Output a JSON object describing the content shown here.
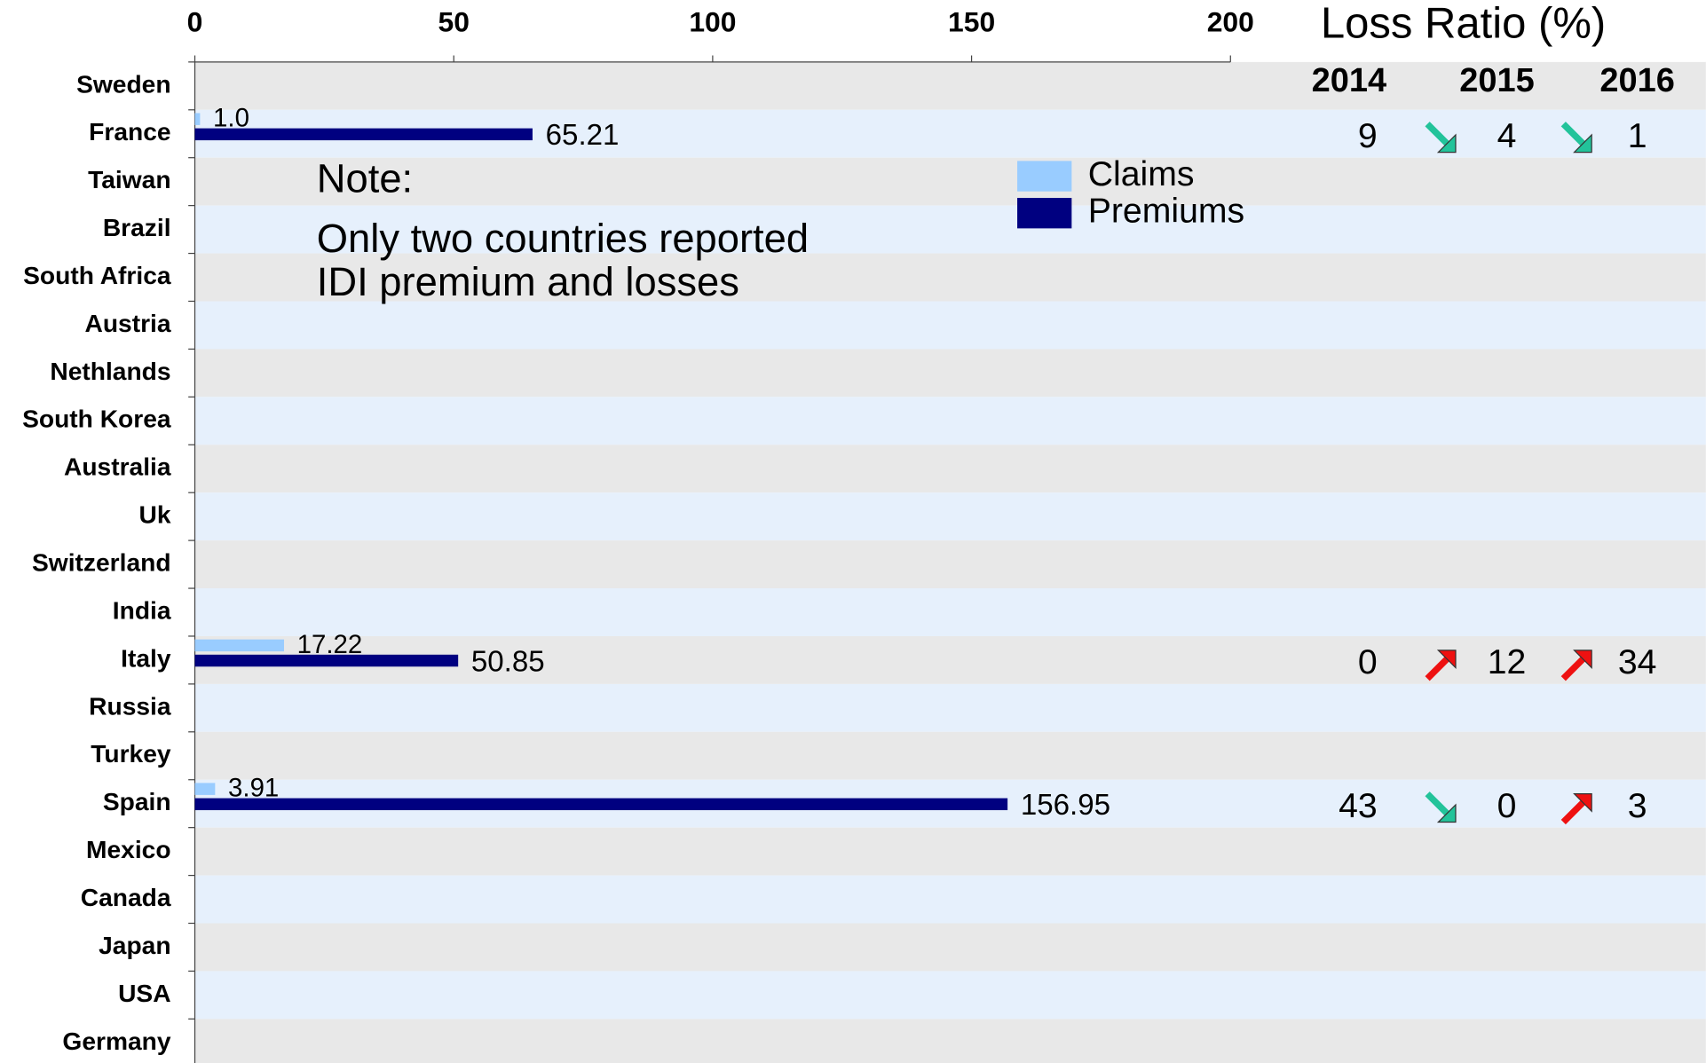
{
  "chart_data": {
    "type": "hbar",
    "categories": [
      "Sweden",
      "France",
      "Taiwan",
      "Brazil",
      "South Africa",
      "Austria",
      "Nethlands",
      "South Korea",
      "Australia",
      "Uk",
      "Switzerland",
      "India",
      "Italy",
      "Russia",
      "Turkey",
      "Spain",
      "Mexico",
      "Canada",
      "Japan",
      "USA",
      "Germany"
    ],
    "series": [
      {
        "name": "Claims",
        "color": "#99ccff",
        "values": [
          null,
          1.0,
          null,
          null,
          null,
          null,
          null,
          null,
          null,
          null,
          null,
          null,
          17.22,
          null,
          null,
          3.91,
          null,
          null,
          null,
          null,
          null
        ],
        "value_labels": [
          null,
          "1.0",
          null,
          null,
          null,
          null,
          null,
          null,
          null,
          null,
          null,
          null,
          "17.22",
          null,
          null,
          "3.91",
          null,
          null,
          null,
          null,
          null
        ]
      },
      {
        "name": "Premiums",
        "color": "#000080",
        "values": [
          null,
          65.21,
          null,
          null,
          null,
          null,
          null,
          null,
          null,
          null,
          null,
          null,
          50.85,
          null,
          null,
          156.95,
          null,
          null,
          null,
          null,
          null
        ]
      }
    ],
    "xlim": [
      0,
      200
    ],
    "xticks": [
      0,
      50,
      100,
      150,
      200
    ],
    "annotations": [
      "Note:",
      "Only two countries reported",
      "IDI premium and losses"
    ],
    "loss_ratio": {
      "title": "Loss Ratio (%)",
      "years": [
        "2014",
        "2015",
        "2016"
      ],
      "values": [
        null,
        [
          9,
          4,
          1
        ],
        null,
        null,
        null,
        null,
        null,
        null,
        null,
        null,
        null,
        null,
        [
          0,
          12,
          34
        ],
        null,
        null,
        [
          43,
          0,
          3
        ],
        null,
        null,
        null,
        null,
        null
      ]
    }
  }
}
